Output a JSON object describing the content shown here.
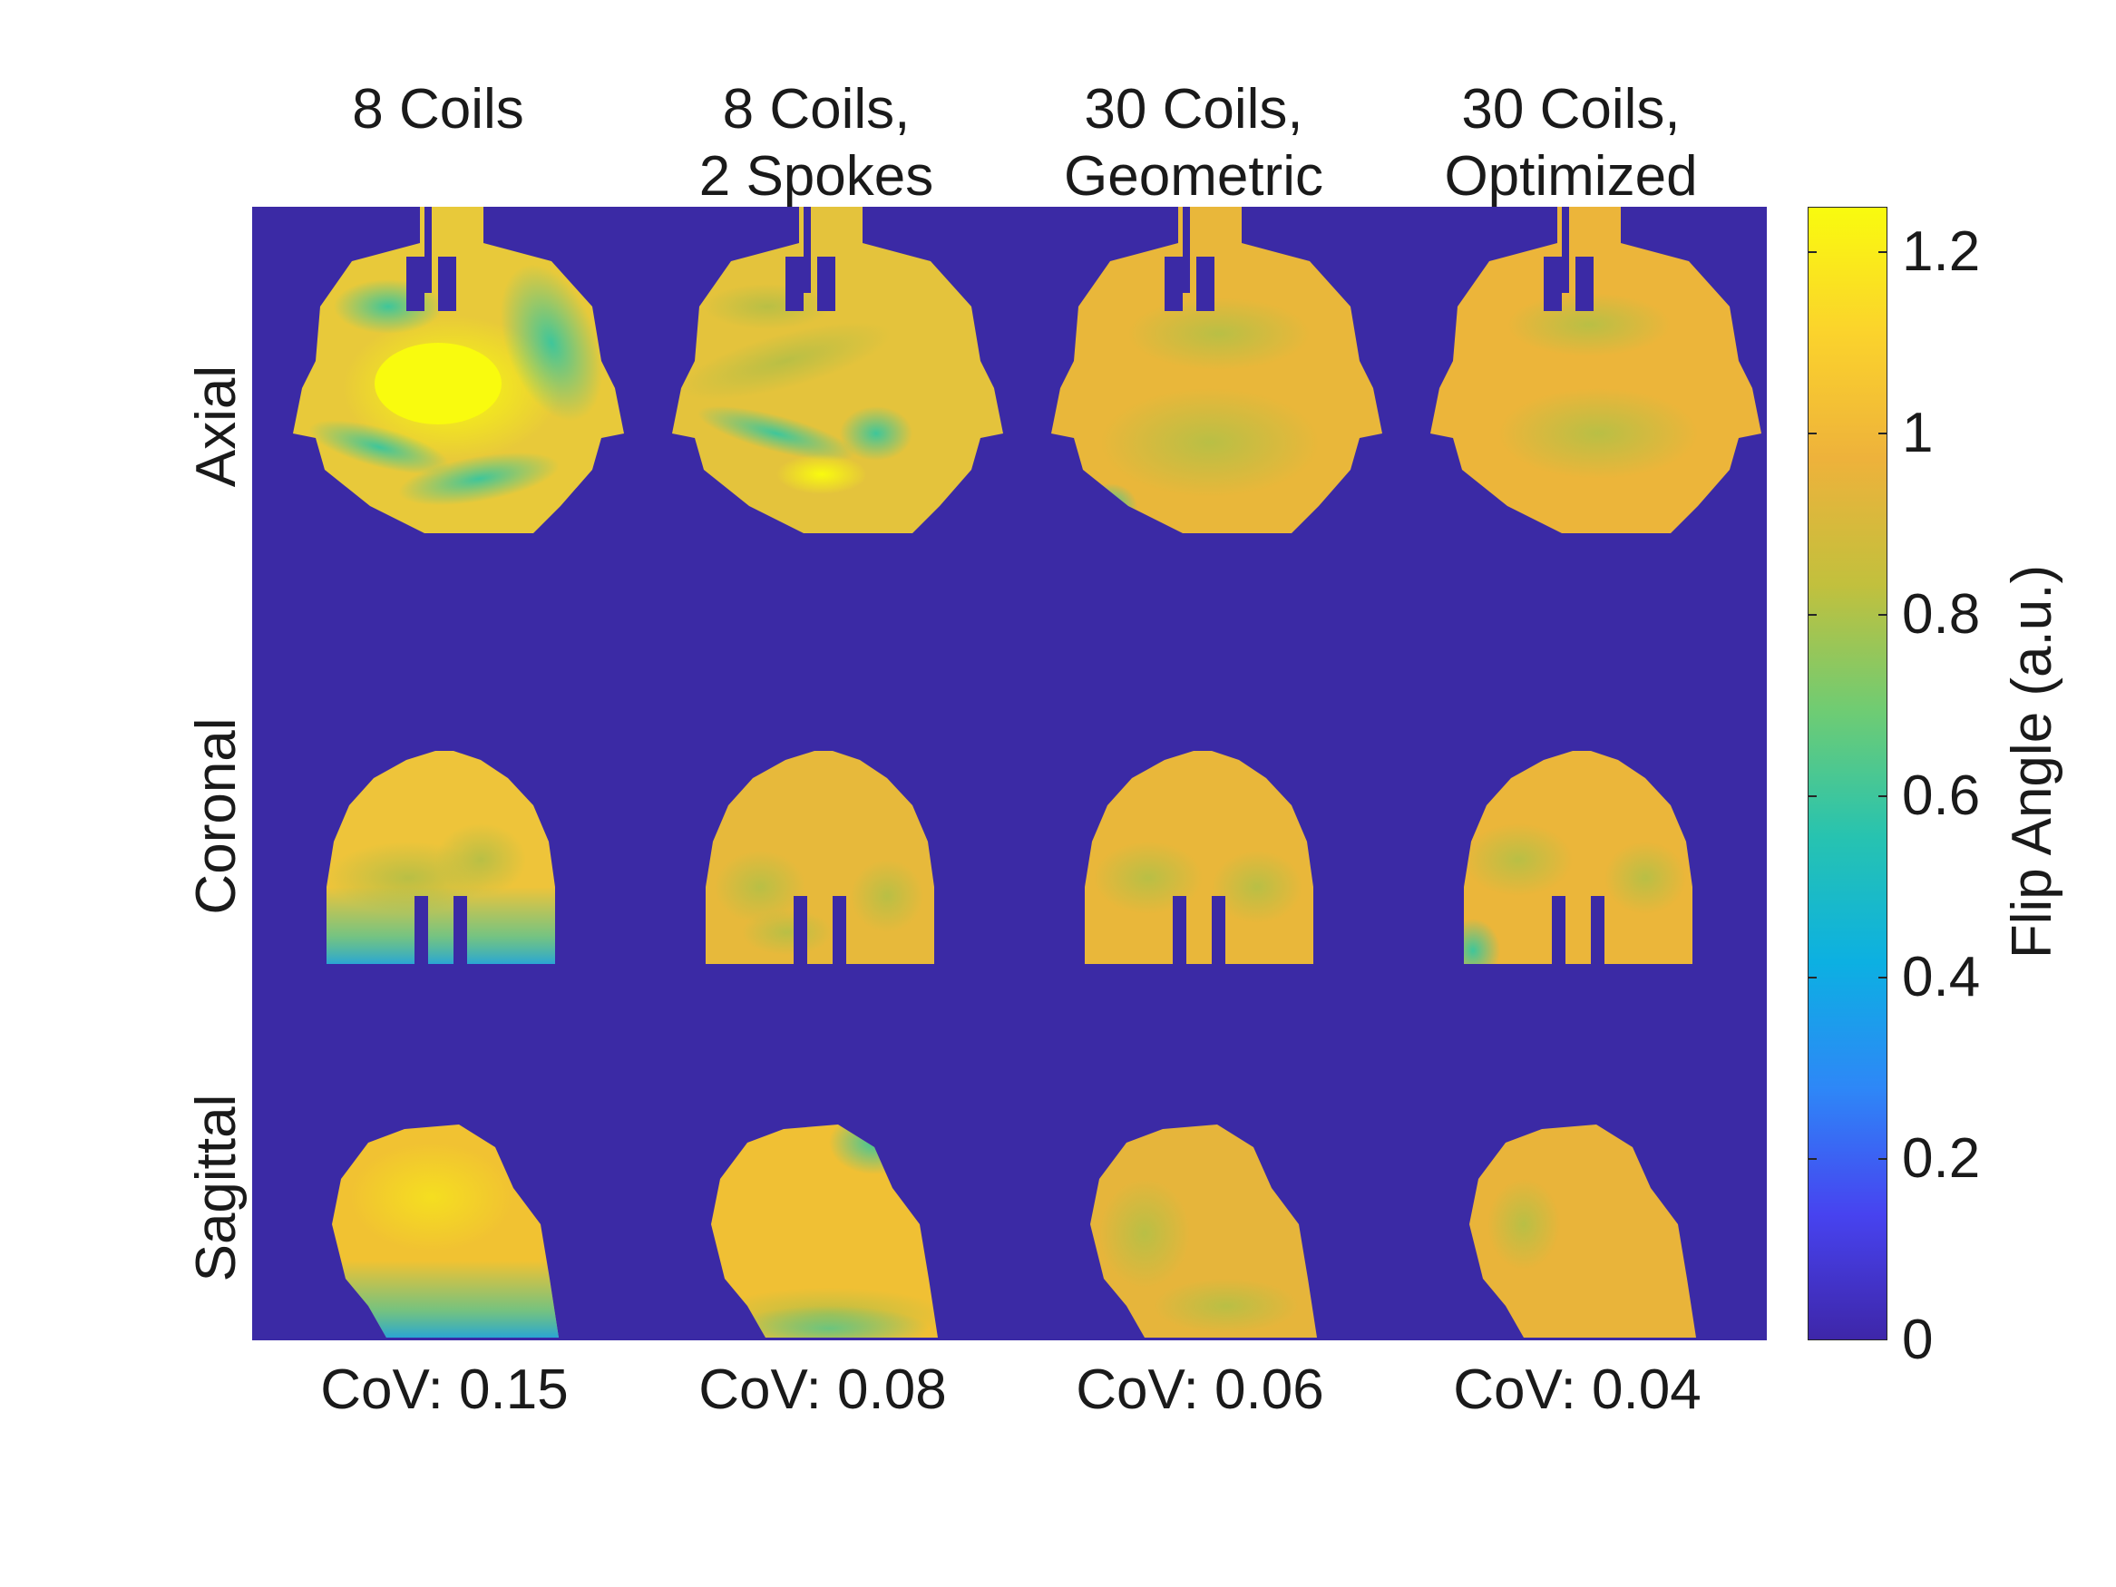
{
  "chart_data": {
    "type": "heatmap",
    "columns": [
      {
        "title_lines": [
          "",
          "8 Coils"
        ],
        "cov": "CoV: 0.15"
      },
      {
        "title_lines": [
          "8 Coils,",
          "2 Spokes"
        ],
        "cov": "CoV: 0.08"
      },
      {
        "title_lines": [
          "30 Coils,",
          "Geometric"
        ],
        "cov": "CoV: 0.06"
      },
      {
        "title_lines": [
          "30 Coils,",
          "Optimized"
        ],
        "cov": "CoV: 0.04"
      }
    ],
    "rows": [
      "Axial",
      "Coronal",
      "Sagittal"
    ],
    "colorbar": {
      "label": "Flip Angle (a.u.)",
      "range": [
        0,
        1.25
      ],
      "ticks": [
        "0",
        "0.2",
        "0.4",
        "0.6",
        "0.8",
        "1",
        "1.2"
      ],
      "tick_values": [
        0,
        0.2,
        0.4,
        0.6,
        0.8,
        1.0,
        1.2
      ],
      "colormap": [
        "#3e26a8",
        "#4743f0",
        "#2e87f7",
        "#0cb0e2",
        "#27c3b0",
        "#6fcc73",
        "#c2c03d",
        "#eeb23b",
        "#fbd32c",
        "#f9fb0e"
      ]
    },
    "background_value": 0,
    "colors": {
      "background": "#3b2aa5"
    }
  }
}
